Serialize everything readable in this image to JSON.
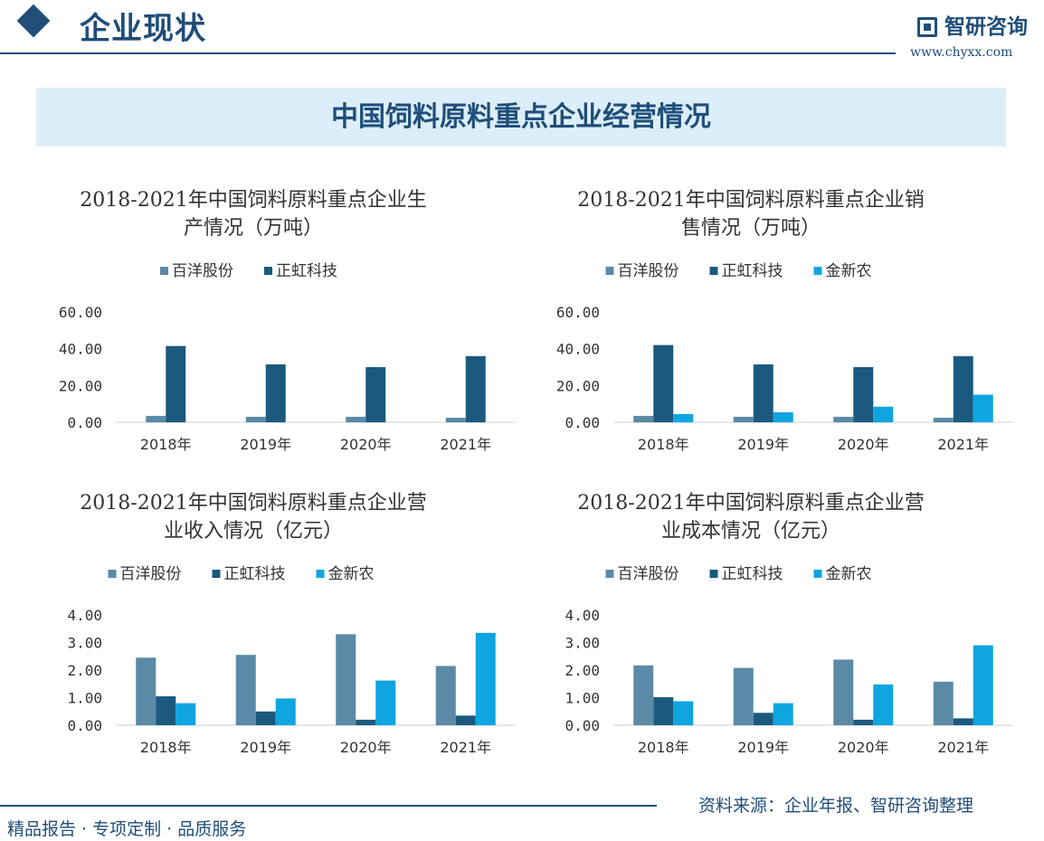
{
  "header": {
    "title": "企业现状",
    "logo_text": "智研咨询",
    "website": "www.chyxx.com"
  },
  "banner": {
    "title": "中国饲料原料重点企业经营情况"
  },
  "footer": {
    "left": "精品报告 · 专项定制 · 品质服务",
    "right": "资料来源：企业年报、智研咨询整理"
  },
  "colors": {
    "百洋股份": "#5b8aa6",
    "正虹科技": "#1b5a7e",
    "金新农": "#0ea5e0"
  },
  "chart_data": [
    {
      "type": "bar",
      "title_lines": [
        "2018-2021年中国饲料原料重点企业生",
        "产情况（万吨）"
      ],
      "categories": [
        "2018年",
        "2019年",
        "2020年",
        "2021年"
      ],
      "yticks": [
        "0.00",
        "20.00",
        "40.00",
        "60.00"
      ],
      "ylim": [
        0,
        60
      ],
      "legend": "top",
      "series": [
        {
          "name": "百洋股份",
          "color": "#5b8aa6",
          "values": [
            3.5,
            3.0,
            3.0,
            2.5
          ]
        },
        {
          "name": "正虹科技",
          "color": "#1b5a7e",
          "values": [
            41.5,
            31.5,
            30.0,
            36.0
          ]
        }
      ]
    },
    {
      "type": "bar",
      "title_lines": [
        "2018-2021年中国饲料原料重点企业销",
        "售情况（万吨）"
      ],
      "categories": [
        "2018年",
        "2019年",
        "2020年",
        "2021年"
      ],
      "yticks": [
        "0.00",
        "20.00",
        "40.00",
        "60.00"
      ],
      "ylim": [
        0,
        60
      ],
      "legend": "top",
      "series": [
        {
          "name": "百洋股份",
          "color": "#5b8aa6",
          "values": [
            3.5,
            3.0,
            3.0,
            2.5
          ]
        },
        {
          "name": "正虹科技",
          "color": "#1b5a7e",
          "values": [
            42.0,
            31.5,
            30.0,
            36.0
          ]
        },
        {
          "name": "金新农",
          "color": "#0ea5e0",
          "values": [
            4.5,
            5.5,
            8.5,
            15.0
          ]
        }
      ]
    },
    {
      "type": "bar",
      "title_lines": [
        "2018-2021年中国饲料原料重点企业营",
        "业收入情况（亿元）"
      ],
      "categories": [
        "2018年",
        "2019年",
        "2020年",
        "2021年"
      ],
      "yticks": [
        "0.00",
        "1.00",
        "2.00",
        "3.00",
        "4.00"
      ],
      "ylim": [
        0,
        4
      ],
      "legend": "top",
      "series": [
        {
          "name": "百洋股份",
          "color": "#5b8aa6",
          "values": [
            2.45,
            2.55,
            3.3,
            2.15
          ]
        },
        {
          "name": "正虹科技",
          "color": "#1b5a7e",
          "values": [
            1.05,
            0.5,
            0.2,
            0.35
          ]
        },
        {
          "name": "金新农",
          "color": "#0ea5e0",
          "values": [
            0.8,
            0.97,
            1.62,
            3.35
          ]
        }
      ]
    },
    {
      "type": "bar",
      "title_lines": [
        "2018-2021年中国饲料原料重点企业营",
        "业成本情况（亿元）"
      ],
      "categories": [
        "2018年",
        "2019年",
        "2020年",
        "2021年"
      ],
      "yticks": [
        "0.00",
        "1.00",
        "2.00",
        "3.00",
        "4.00"
      ],
      "ylim": [
        0,
        4
      ],
      "legend": "top",
      "series": [
        {
          "name": "百洋股份",
          "color": "#5b8aa6",
          "values": [
            2.17,
            2.08,
            2.38,
            1.58
          ]
        },
        {
          "name": "正虹科技",
          "color": "#1b5a7e",
          "values": [
            1.02,
            0.45,
            0.2,
            0.25
          ]
        },
        {
          "name": "金新农",
          "color": "#0ea5e0",
          "values": [
            0.87,
            0.8,
            1.48,
            2.9
          ]
        }
      ]
    }
  ]
}
